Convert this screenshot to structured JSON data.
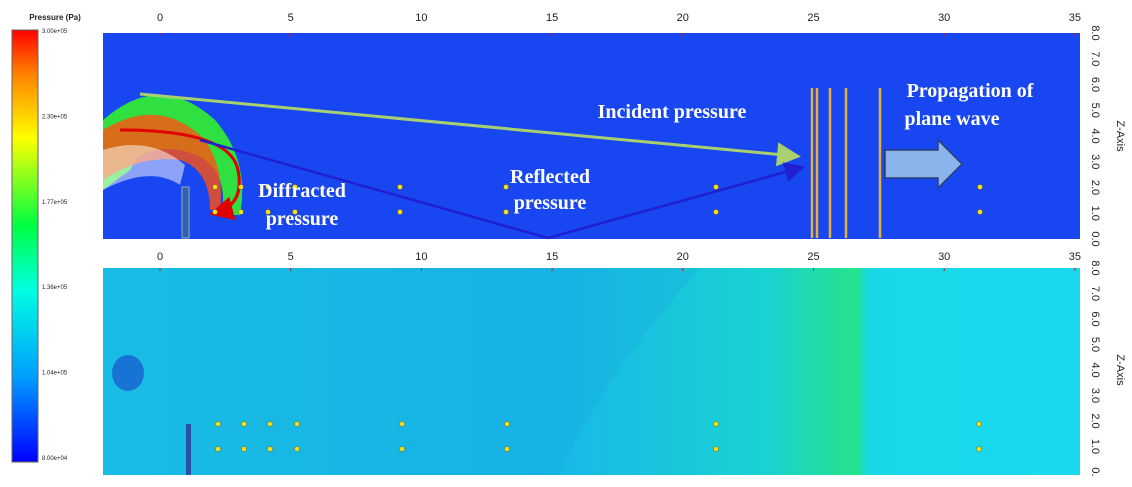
{
  "colorbar": {
    "title": "Pressure (Pa)",
    "labels": [
      "3.00e+05",
      "2.30e+05",
      "1.77e+05",
      "1.36e+05",
      "1.04e+05",
      "8.00e+04"
    ]
  },
  "top_panel": {
    "x_ticks": [
      "0",
      "5",
      "10",
      "15",
      "20",
      "25",
      "30",
      "35"
    ],
    "z_ticks": [
      "8.0",
      "7.0",
      "6.0",
      "5.0",
      "4.0",
      "3.0",
      "2.0",
      "1.0",
      "0.0"
    ],
    "z_axis_label": "Z-Axis",
    "annotations": {
      "incident": [
        "Incident pressure"
      ],
      "reflected": [
        "Reflected",
        "pressure"
      ],
      "diffracted": [
        "Diffracted",
        "pressure"
      ],
      "propagation": [
        "Propagation of",
        "plane wave"
      ]
    }
  },
  "bottom_panel": {
    "x_ticks": [
      "0",
      "5",
      "10",
      "15",
      "20",
      "25",
      "30",
      "35"
    ],
    "z_ticks": [
      "8.0",
      "7.0",
      "6.0",
      "5.0",
      "4.0",
      "3.0",
      "2.0",
      "1.0",
      "0."
    ],
    "z_axis_label": "Z-Axis"
  }
}
